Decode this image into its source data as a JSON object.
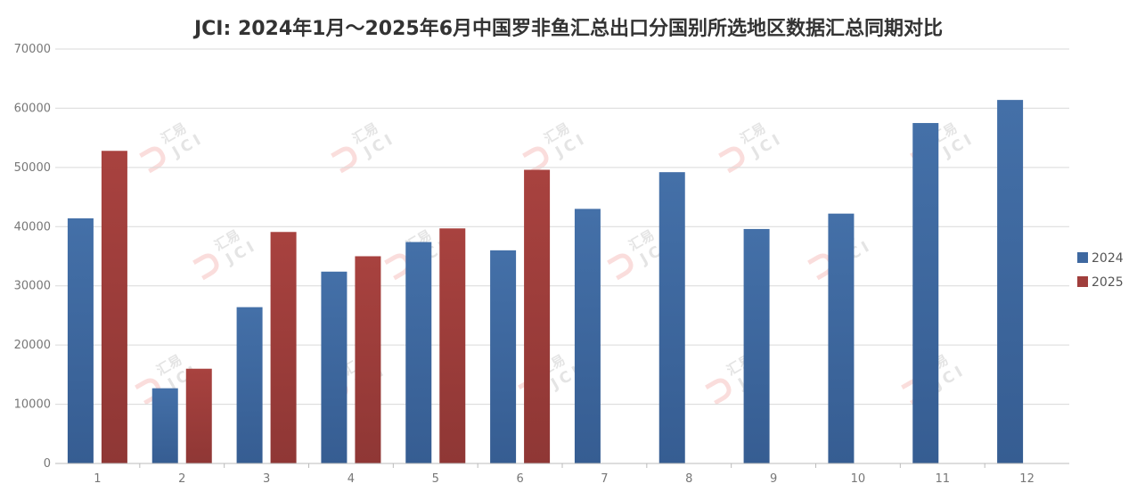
{
  "chart_data": {
    "type": "bar",
    "title": "JCI: 2024年1月～2025年6月中国罗非鱼汇总出口分国别所选地区数据汇总同期对比",
    "categories": [
      "1",
      "2",
      "3",
      "4",
      "5",
      "6",
      "7",
      "8",
      "9",
      "10",
      "11",
      "12"
    ],
    "series": [
      {
        "name": "2024",
        "color": "#3e68a0",
        "values": [
          41400,
          12700,
          26400,
          32400,
          37400,
          36000,
          43000,
          49200,
          39600,
          42200,
          57500,
          61400
        ]
      },
      {
        "name": "2025",
        "color": "#a03e3c",
        "values": [
          52800,
          16000,
          39100,
          35000,
          39700,
          49600,
          null,
          null,
          null,
          null,
          null,
          null
        ]
      }
    ],
    "y_ticks": [
      0,
      10000,
      20000,
      30000,
      40000,
      50000,
      60000,
      70000
    ],
    "ylim": [
      0,
      70000
    ],
    "grid": true,
    "legend_position": "right"
  },
  "watermark": {
    "text": "汇易",
    "subtext": "JCI"
  }
}
